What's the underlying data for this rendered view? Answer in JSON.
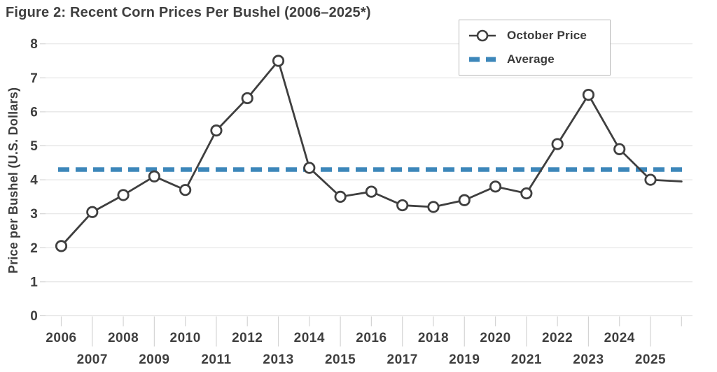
{
  "title": "Figure 2: Recent Corn Prices Per Bushel (2006–2025*)",
  "legend": {
    "items": [
      {
        "label": "October Price",
        "marker": "line-circle-marker"
      },
      {
        "label": "Average",
        "marker": "dashed-line-marker"
      }
    ]
  },
  "colors": {
    "line": "#3f3f3f",
    "average": "#3d87ba",
    "grid": "#e4e4e4",
    "tick": "#d4d4d4",
    "text": "#3f3f3f",
    "marker_fill": "#ffffff",
    "legend_border": "#b8b8b8"
  },
  "chart_data": {
    "type": "line",
    "title": "Figure 2: Recent Corn Prices Per Bushel (2006–2025*)",
    "xlabel": "",
    "ylabel": "Price per Bushel (U.S. Dollars)",
    "ylim": [
      0,
      8
    ],
    "yticks": [
      0,
      1,
      2,
      3,
      4,
      5,
      6,
      7,
      8
    ],
    "grid": true,
    "legend_position": "top-right",
    "years": [
      2006,
      2007,
      2008,
      2009,
      2010,
      2011,
      2012,
      2013,
      2014,
      2015,
      2016,
      2017,
      2018,
      2019,
      2020,
      2021,
      2022,
      2023,
      2024,
      2025
    ],
    "series": [
      {
        "name": "October Price",
        "style": "line-with-circle-markers",
        "values": [
          2.05,
          3.05,
          3.55,
          4.1,
          3.7,
          5.45,
          6.4,
          7.5,
          4.35,
          3.5,
          3.65,
          3.25,
          3.2,
          3.4,
          3.8,
          3.6,
          5.05,
          6.5,
          4.9,
          4.0
        ]
      },
      {
        "name": "Average",
        "style": "horizontal-dashed-line",
        "value": 4.3
      }
    ],
    "trailing_segment": {
      "year": 2026,
      "value": 3.95,
      "has_marker": false
    }
  }
}
